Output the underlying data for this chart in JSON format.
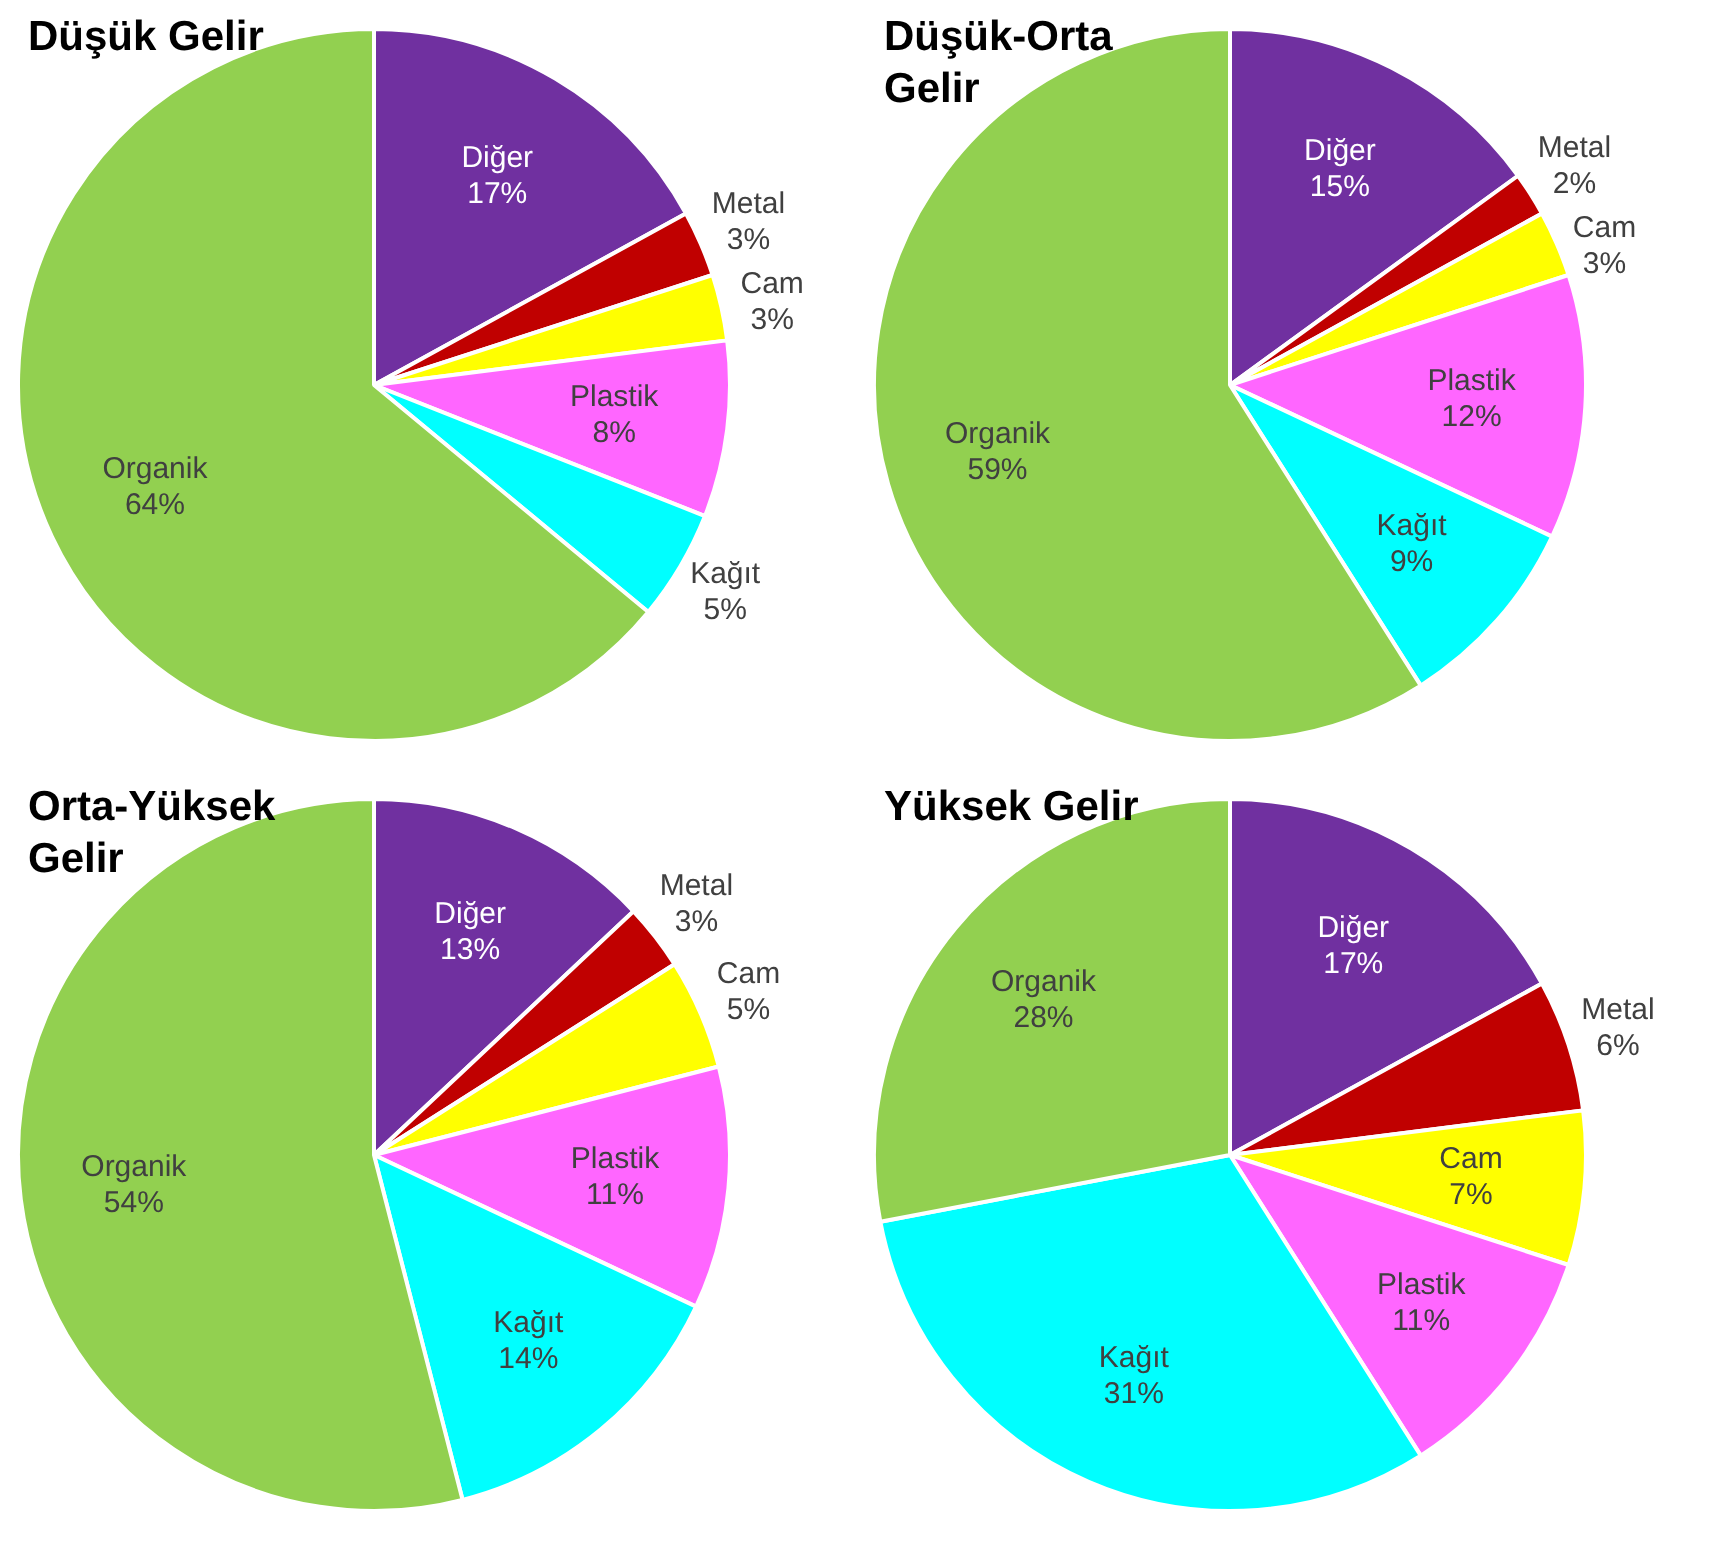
{
  "chart_data": [
    {
      "type": "pie",
      "title": "Düşük Gelir",
      "categories": [
        "Diğer",
        "Metal",
        "Cam",
        "Plastik",
        "Kağıt",
        "Organik"
      ],
      "values": [
        17,
        3,
        3,
        8,
        5,
        64
      ],
      "value_labels": [
        "17%",
        "3%",
        "3%",
        "8%",
        "5%",
        "64%"
      ],
      "colors": [
        "#7030a0",
        "#c00000",
        "#ffff00",
        "#ff66ff",
        "#00ffff",
        "#92d050"
      ],
      "legend": false
    },
    {
      "type": "pie",
      "title": "Düşük-Orta Gelir",
      "categories": [
        "Diğer",
        "Metal",
        "Cam",
        "Plastik",
        "Kağıt",
        "Organik"
      ],
      "values": [
        15,
        2,
        3,
        12,
        9,
        59
      ],
      "value_labels": [
        "15%",
        "2%",
        "3%",
        "12%",
        "9%",
        "59%"
      ],
      "colors": [
        "#7030a0",
        "#c00000",
        "#ffff00",
        "#ff66ff",
        "#00ffff",
        "#92d050"
      ],
      "legend": false
    },
    {
      "type": "pie",
      "title": "Orta-Yüksek Gelir",
      "categories": [
        "Diğer",
        "Metal",
        "Cam",
        "Plastik",
        "Kağıt",
        "Organik"
      ],
      "values": [
        13,
        3,
        5,
        11,
        14,
        54
      ],
      "value_labels": [
        "13%",
        "3%",
        "5%",
        "11%",
        "14%",
        "54%"
      ],
      "colors": [
        "#7030a0",
        "#c00000",
        "#ffff00",
        "#ff66ff",
        "#00ffff",
        "#92d050"
      ],
      "legend": false
    },
    {
      "type": "pie",
      "title": "Yüksek Gelir",
      "categories": [
        "Diğer",
        "Metal",
        "Cam",
        "Plastik",
        "Kağıt",
        "Organik"
      ],
      "values": [
        17,
        6,
        7,
        11,
        31,
        28
      ],
      "value_labels": [
        "17%",
        "6%",
        "7%",
        "11%",
        "31%",
        "28%"
      ],
      "colors": [
        "#7030a0",
        "#c00000",
        "#ffff00",
        "#ff66ff",
        "#00ffff",
        "#92d050"
      ],
      "legend": false
    }
  ]
}
